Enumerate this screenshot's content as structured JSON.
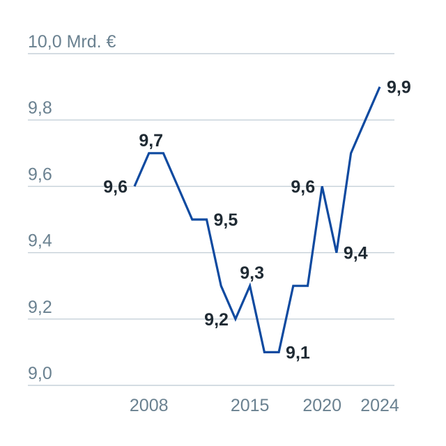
{
  "chart_data": {
    "type": "line",
    "title": "",
    "xlabel": "",
    "ylabel": "",
    "unit": "Mrd. €",
    "ylim": [
      9.0,
      10.0
    ],
    "xlim": [
      2005,
      2024
    ],
    "grid": true,
    "y_ticks": [
      {
        "value": 10.0,
        "label": "10,0 Mrd. €"
      },
      {
        "value": 9.8,
        "label": "9,8"
      },
      {
        "value": 9.6,
        "label": "9,6"
      },
      {
        "value": 9.4,
        "label": "9,4"
      },
      {
        "value": 9.2,
        "label": "9,2"
      },
      {
        "value": 9.0,
        "label": "9,0"
      }
    ],
    "x_ticks": [
      {
        "value": 2008,
        "label": "2008"
      },
      {
        "value": 2015,
        "label": "2015"
      },
      {
        "value": 2020,
        "label": "2020"
      },
      {
        "value": 2024,
        "label": "2024"
      }
    ],
    "series": [
      {
        "color": "#0f4aa0",
        "x": [
          2007,
          2008,
          2009,
          2010,
          2011,
          2012,
          2013,
          2014,
          2015,
          2016,
          2017,
          2018,
          2019,
          2020,
          2021,
          2022,
          2023,
          2024
        ],
        "values": [
          9.6,
          9.7,
          9.7,
          9.6,
          9.5,
          9.5,
          9.3,
          9.2,
          9.3,
          9.1,
          9.1,
          9.3,
          9.3,
          9.6,
          9.4,
          9.7,
          9.8,
          9.9
        ]
      }
    ],
    "data_labels": [
      {
        "x": 2007,
        "y": 9.6,
        "text": "9,6",
        "pos": "left"
      },
      {
        "x": 2008,
        "y": 9.7,
        "text": "9,7",
        "pos": "above"
      },
      {
        "x": 2012,
        "y": 9.5,
        "text": "9,5",
        "pos": "right"
      },
      {
        "x": 2014,
        "y": 9.2,
        "text": "9,2",
        "pos": "left"
      },
      {
        "x": 2015,
        "y": 9.3,
        "text": "9,3",
        "pos": "above"
      },
      {
        "x": 2017,
        "y": 9.1,
        "text": "9,1",
        "pos": "right"
      },
      {
        "x": 2020,
        "y": 9.6,
        "text": "9,6",
        "pos": "left"
      },
      {
        "x": 2021,
        "y": 9.4,
        "text": "9,4",
        "pos": "right"
      },
      {
        "x": 2024,
        "y": 9.9,
        "text": "9,9",
        "pos": "right"
      }
    ]
  }
}
